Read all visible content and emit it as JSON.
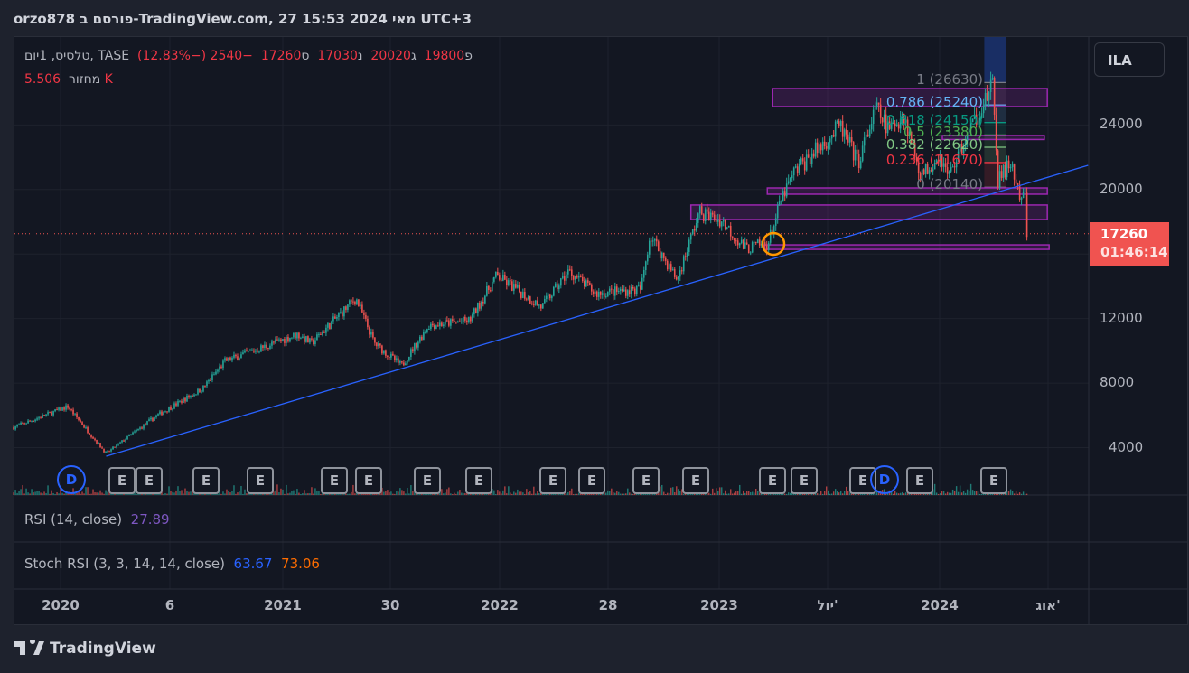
{
  "header": {
    "title": "orzo878 פורסם ב-TradingView.com, 27 מאי 2024 15:53 UTC+3"
  },
  "legend": {
    "symbol": "טלסיס, 1יום, TASE",
    "open_label": "פ",
    "open": "19800",
    "high_label": "ג",
    "high": "20020",
    "low_label": "נ",
    "low": "17030",
    "close_label": "ס",
    "close": "17260",
    "change": "−2540 (−12.83%)",
    "volume_label": "מחזור",
    "volume": "5.506 K"
  },
  "currency_button": "ILA",
  "price_axis": {
    "ticks": [
      "24000",
      "20000",
      "12000",
      "8000",
      "4000"
    ],
    "last_price": "17260",
    "countdown": "01:46:14"
  },
  "time_axis": {
    "ticks": [
      "2020",
      "6",
      "2021",
      "30",
      "2022",
      "28",
      "2023",
      "יול'",
      "2024",
      "אוג'"
    ]
  },
  "indicators": {
    "rsi": {
      "label": "RSI (14, close)",
      "value": "27.89",
      "color": "#7e57c2"
    },
    "stoch_rsi": {
      "label": "Stoch RSI (3, 3, 14, 14, close)",
      "k": "63.67",
      "d": "73.06",
      "k_color": "#2962ff",
      "d_color": "#ff6d00"
    }
  },
  "fibonacci": [
    {
      "label": "1 (26630)",
      "color": "#787b86"
    },
    {
      "label": "0.786 (25240)",
      "color": "#64b5f6"
    },
    {
      "label": "0.618 (24150)",
      "color": "#089981"
    },
    {
      "label": "0.5 (23380)",
      "color": "#4caf50"
    },
    {
      "label": "0.382 (22620)",
      "color": "#81c784"
    },
    {
      "label": "0.236 (21670)",
      "color": "#f23645"
    },
    {
      "label": "0 (20140)",
      "color": "#787b86"
    }
  ],
  "events": [
    {
      "type": "D"
    },
    {
      "type": "E"
    },
    {
      "type": "E"
    },
    {
      "type": "E"
    },
    {
      "type": "E"
    },
    {
      "type": "E"
    },
    {
      "type": "E"
    },
    {
      "type": "E"
    },
    {
      "type": "E"
    },
    {
      "type": "E"
    },
    {
      "type": "E"
    },
    {
      "type": "E"
    },
    {
      "type": "E"
    },
    {
      "type": "E"
    },
    {
      "type": "E"
    },
    {
      "type": "E"
    },
    {
      "type": "D"
    },
    {
      "type": "E"
    },
    {
      "type": "E"
    }
  ],
  "footer": {
    "brand": "TradingView"
  },
  "colors": {
    "up": "#26a69a",
    "down": "#ef5350",
    "trendline": "#2962ff",
    "zone": "#9c27b0"
  },
  "chart_data": {
    "type": "candlestick",
    "y_axis": {
      "min": 0,
      "max": 28000,
      "ticks": [
        4000,
        8000,
        12000,
        20000,
        24000
      ]
    },
    "price_path": [
      [
        "2019-10-15",
        5260
      ],
      [
        "2020-01-13",
        6550
      ],
      [
        "2020-03-17",
        3640
      ],
      [
        "2020-06-10",
        6000
      ],
      [
        "2020-08-25",
        7670
      ],
      [
        "2020-10-01",
        9350
      ],
      [
        "2020-12-01",
        10190
      ],
      [
        "2021-01-30",
        11030
      ],
      [
        "2021-02-22",
        10470
      ],
      [
        "2021-05-07",
        13270
      ],
      [
        "2021-06-07",
        10470
      ],
      [
        "2021-07-22",
        9070
      ],
      [
        "2021-09-05",
        11590
      ],
      [
        "2021-11-12",
        11870
      ],
      [
        "2021-12-27",
        14670
      ],
      [
        "2022-03-12",
        12710
      ],
      [
        "2022-04-26",
        14950
      ],
      [
        "2022-06-10",
        13550
      ],
      [
        "2022-08-24",
        13830
      ],
      [
        "2022-09-08",
        17190
      ],
      [
        "2022-10-23",
        14390
      ],
      [
        "2022-11-29",
        18590
      ],
      [
        "2023-01-06",
        18030
      ],
      [
        "2023-02-13",
        16350
      ],
      [
        "2023-03-23",
        16630
      ],
      [
        "2023-04-15",
        19430
      ],
      [
        "2023-05-07",
        21110
      ],
      [
        "2023-07-21",
        23910
      ],
      [
        "2023-08-20",
        21670
      ],
      [
        "2023-09-19",
        25030
      ],
      [
        "2023-10-11",
        23630
      ],
      [
        "2023-11-03",
        24750
      ],
      [
        "2023-12-03",
        20830
      ],
      [
        "2024-01-02",
        22230
      ],
      [
        "2024-01-17",
        20830
      ],
      [
        "2024-03-10",
        25030
      ],
      [
        "2024-04-01",
        26430
      ],
      [
        "2024-04-08",
        20550
      ],
      [
        "2024-05-01",
        21670
      ],
      [
        "2024-05-16",
        19150
      ],
      [
        "2024-05-24",
        19800
      ],
      [
        "2024-05-27",
        17260
      ]
    ],
    "trendline": [
      [
        "2020-03-17",
        3470
      ],
      [
        "2024-09-06",
        21500
      ]
    ],
    "zones": [
      {
        "from": "2023-03-31",
        "to": "2024-06-30",
        "low": 25140,
        "high": 26260
      },
      {
        "from": "2024-01-07",
        "to": "2024-06-25",
        "low": 23100,
        "high": 23350
      },
      {
        "from": "2023-03-22",
        "to": "2024-06-30",
        "low": 19710,
        "high": 20100
      },
      {
        "from": "2022-11-15",
        "to": "2024-06-30",
        "low": 18140,
        "high": 19040
      },
      {
        "from": "2023-03-17",
        "to": "2024-07-03",
        "low": 16290,
        "high": 16570
      }
    ],
    "fib_range": {
      "from": "2024-04-01",
      "to": "2024-05-31",
      "high": 26630,
      "low": 20140
    }
  }
}
